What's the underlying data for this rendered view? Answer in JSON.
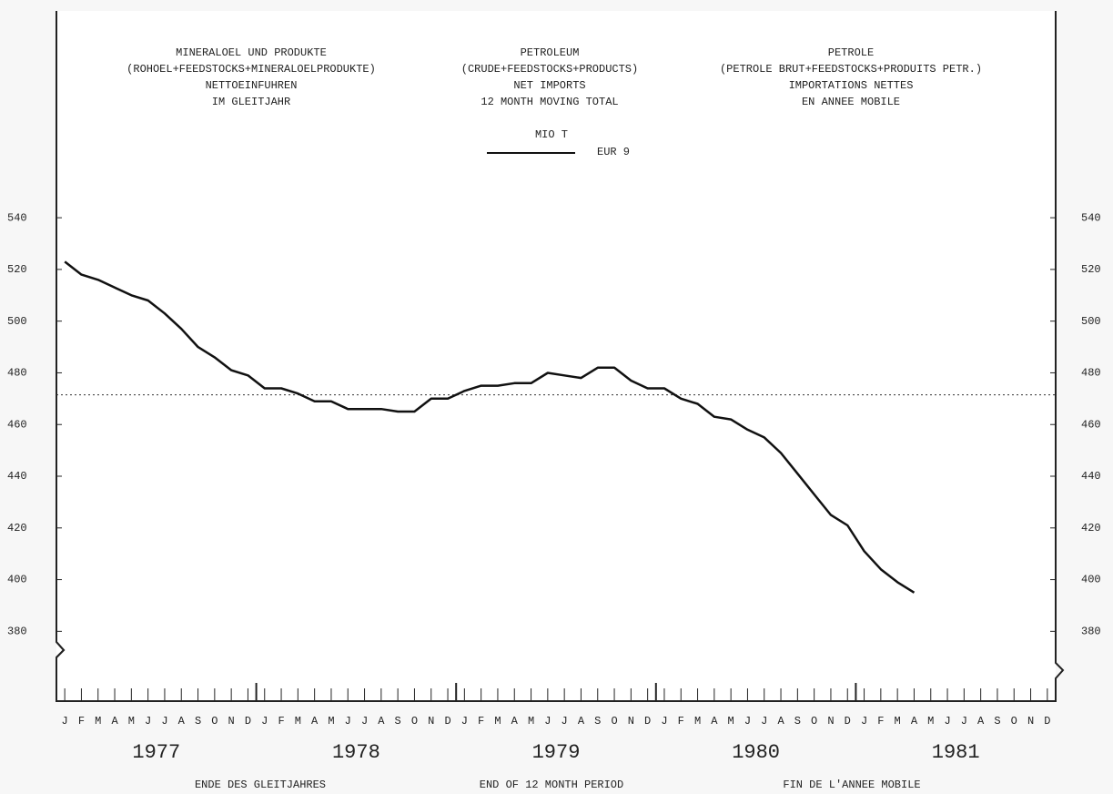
{
  "chart_data": {
    "type": "line",
    "headers": [
      [
        "MINERALOEL UND PRODUKTE",
        "(ROHOEL+FEEDSTOCKS+MINERALOELPRODUKTE)",
        "NETTOEINFUHREN",
        "IM GLEITJAHR"
      ],
      [
        "PETROLEUM",
        "(CRUDE+FEEDSTOCKS+PRODUCTS)",
        "NET IMPORTS",
        "12 MONTH MOVING TOTAL"
      ],
      [
        "PETROLE",
        "(PETROLE BRUT+FEEDSTOCKS+PRODUITS PETR.)",
        "IMPORTATIONS NETTES",
        "EN ANNEE MOBILE"
      ]
    ],
    "unit": "MIO T",
    "x_labels": [
      "ENDE DES GLEITJAHRES",
      "END OF 12 MONTH PERIOD",
      "FIN DE L'ANNEE MOBILE"
    ],
    "years": [
      "1977",
      "1978",
      "1979",
      "1980",
      "1981"
    ],
    "categories": [
      "J",
      "F",
      "M",
      "A",
      "M",
      "J",
      "J",
      "A",
      "S",
      "O",
      "N",
      "D",
      "J",
      "F",
      "M",
      "A",
      "M",
      "J",
      "J",
      "A",
      "S",
      "O",
      "N",
      "D",
      "J",
      "F",
      "M",
      "A",
      "M",
      "J",
      "J",
      "A",
      "S",
      "O",
      "N",
      "D",
      "J",
      "F",
      "M",
      "A",
      "M",
      "J",
      "J",
      "A",
      "S",
      "O",
      "N",
      "D",
      "J",
      "F",
      "M",
      "A",
      "M",
      "J",
      "J",
      "A",
      "S",
      "O",
      "N",
      "D"
    ],
    "series": [
      {
        "name": "EUR 9",
        "color": "#111111",
        "values": [
          523,
          518,
          516,
          513,
          510,
          508,
          503,
          497,
          490,
          486,
          481,
          479,
          474,
          474,
          472,
          469,
          469,
          466,
          466,
          466,
          465,
          465,
          470,
          470,
          473,
          475,
          475,
          476,
          476,
          480,
          479,
          478,
          482,
          482,
          477,
          474,
          474,
          470,
          468,
          463,
          462,
          458,
          455,
          449,
          441,
          433,
          425,
          421,
          411,
          404,
          399,
          395,
          null,
          null,
          null,
          null,
          null,
          null,
          null,
          null
        ]
      }
    ],
    "reference_line": 471.5,
    "ylim": [
      353,
      620
    ],
    "yticks": [
      380,
      400,
      420,
      440,
      460,
      480,
      500,
      520,
      540
    ]
  }
}
